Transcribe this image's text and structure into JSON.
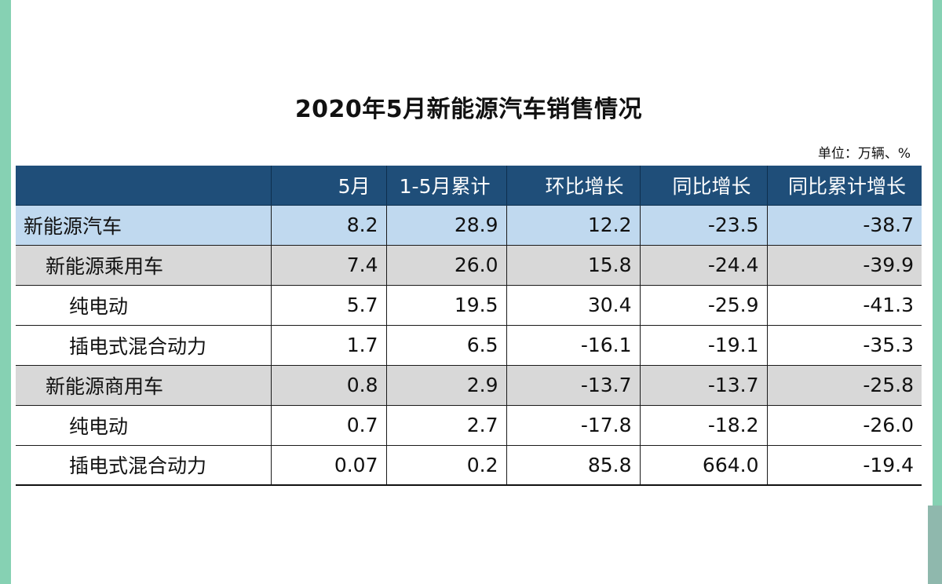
{
  "title": "2020年5月新能源汽车销售情况",
  "unit": "单位：万辆、%",
  "table": {
    "headers": [
      "",
      "5月",
      "1-5月累计",
      "环比增长",
      "同比增长",
      "同比累计增长"
    ],
    "rows": [
      {
        "name": "新能源汽车",
        "cells": [
          "8.2",
          "28.9",
          "12.2",
          "-23.5",
          "-38.7"
        ]
      },
      {
        "name": "新能源乘用车",
        "cells": [
          "7.4",
          "26.0",
          "15.8",
          "-24.4",
          "-39.9"
        ]
      },
      {
        "name": "纯电动",
        "cells": [
          "5.7",
          "19.5",
          "30.4",
          "-25.9",
          "-41.3"
        ]
      },
      {
        "name": "插电式混合动力",
        "cells": [
          "1.7",
          "6.5",
          "-16.1",
          "-19.1",
          "-35.3"
        ]
      },
      {
        "name": "新能源商用车",
        "cells": [
          "0.8",
          "2.9",
          "-13.7",
          "-13.7",
          "-25.8"
        ]
      },
      {
        "name": "纯电动",
        "cells": [
          "0.7",
          "2.7",
          "-17.8",
          "-18.2",
          "-26.0"
        ]
      },
      {
        "name": "插电式混合动力",
        "cells": [
          "0.07",
          "0.2",
          "85.8",
          "664.0",
          "-19.4"
        ]
      }
    ]
  },
  "colors": {
    "header_bg": "#1f4e79",
    "total_row_bg": "#c0d9ef",
    "subtotal_row_bg": "#d8d8d8",
    "side_accent": "#86d1b3"
  }
}
